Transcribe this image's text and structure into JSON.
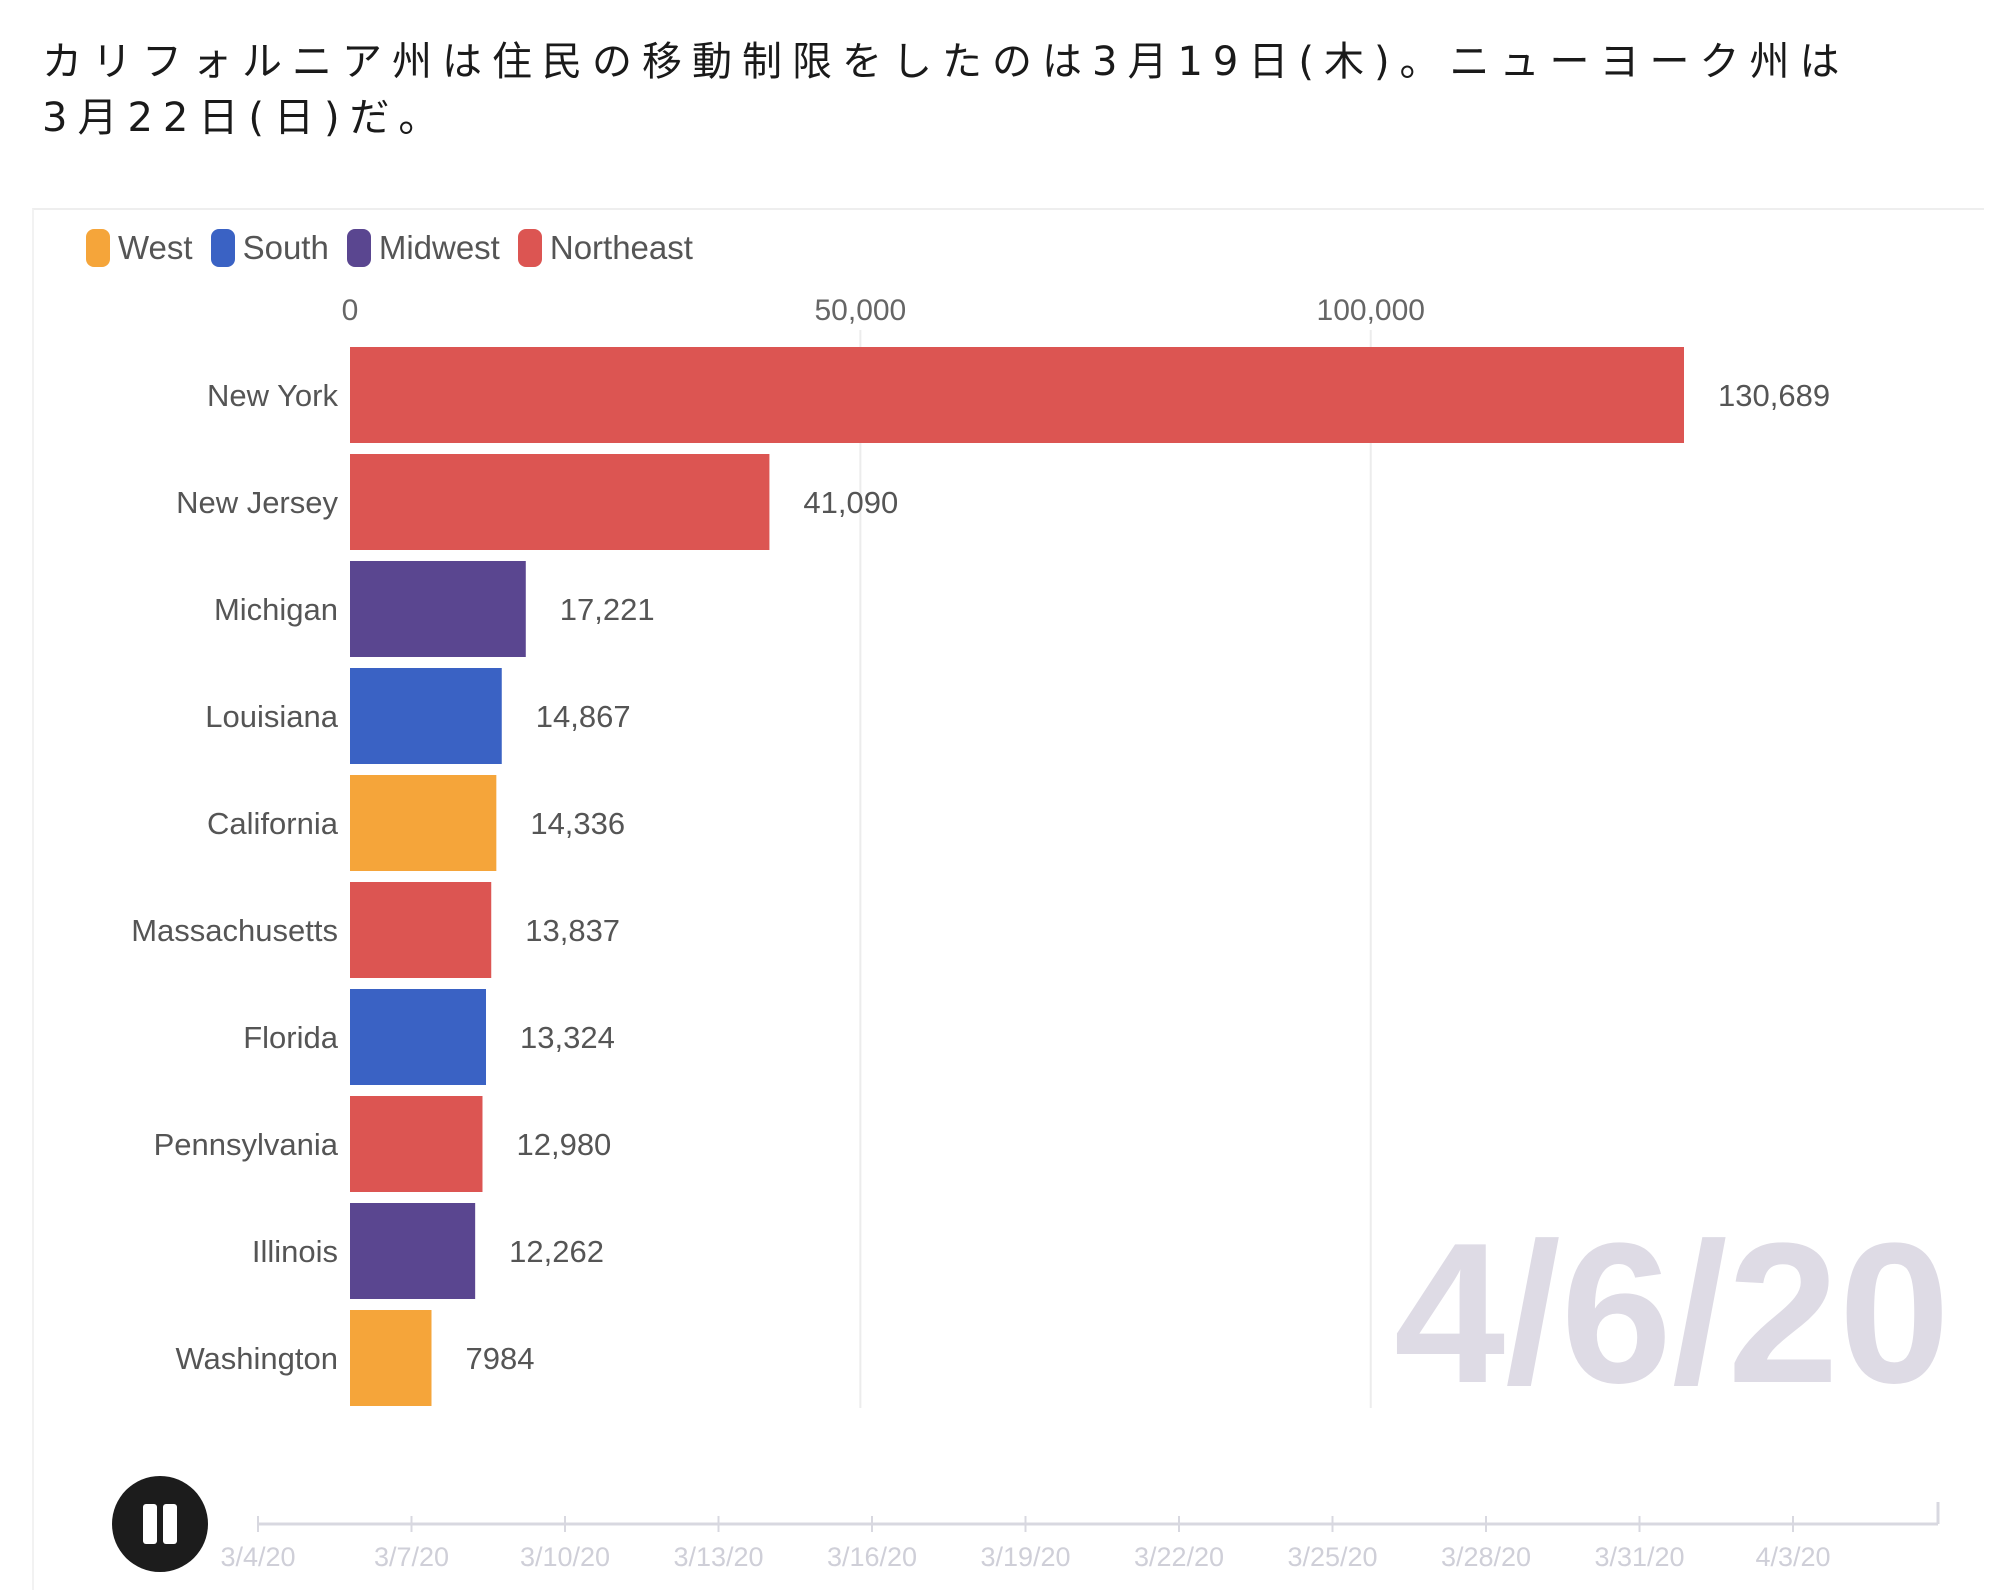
{
  "caption": "カリフォルニア州は住民の移動制限をしたのは3月19日(木)。ニューヨーク州は3月22日(日)だ。",
  "legend": [
    {
      "label": "West",
      "color": "#f5a53a"
    },
    {
      "label": "South",
      "color": "#3a62c4"
    },
    {
      "label": "Midwest",
      "color": "#5a4690"
    },
    {
      "label": "Northeast",
      "color": "#dc5552"
    }
  ],
  "current_date": "4/6/20",
  "chart_data": {
    "type": "bar",
    "orientation": "horizontal",
    "x_ticks": [
      0,
      50000,
      100000
    ],
    "x_tick_labels": [
      "0",
      "50,000",
      "100,000"
    ],
    "xlim": [
      0,
      132000
    ],
    "grid": true,
    "categories": [
      "New York",
      "New Jersey",
      "Michigan",
      "Louisiana",
      "California",
      "Massachusetts",
      "Florida",
      "Pennsylvania",
      "Illinois",
      "Washington"
    ],
    "values": [
      130689,
      41090,
      17221,
      14867,
      14336,
      13837,
      13324,
      12980,
      12262,
      7984
    ],
    "value_labels": [
      "130,689",
      "41,090",
      "17,221",
      "14,867",
      "14,336",
      "13,837",
      "13,324",
      "12,980",
      "12,262",
      "7984"
    ],
    "regions": [
      "Northeast",
      "Northeast",
      "Midwest",
      "South",
      "West",
      "Northeast",
      "South",
      "Northeast",
      "Midwest",
      "West"
    ],
    "legend_position": "top-left"
  },
  "timeline": {
    "labels": [
      "3/4/20",
      "3/7/20",
      "3/10/20",
      "3/13/20",
      "3/16/20",
      "3/19/20",
      "3/22/20",
      "3/25/20",
      "3/28/20",
      "3/31/20",
      "4/3/20"
    ]
  },
  "icons": {
    "play_pause": "pause-icon"
  }
}
